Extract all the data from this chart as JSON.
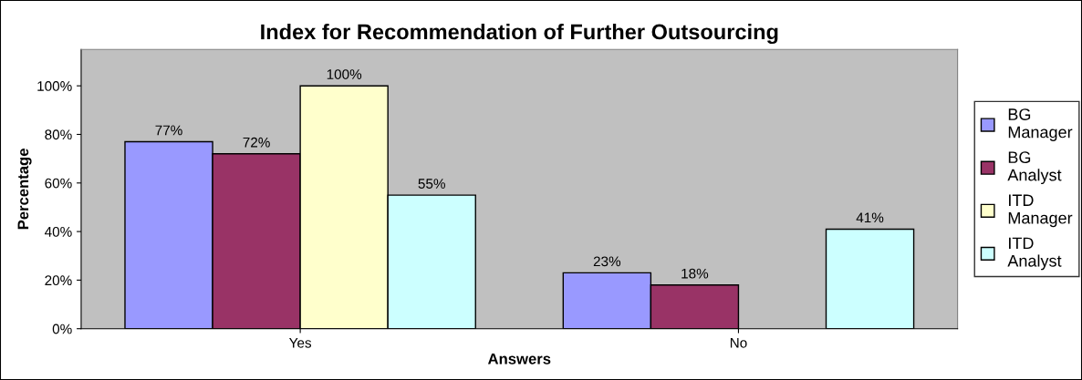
{
  "chart_data": {
    "type": "bar",
    "title": "Index for Recommendation of Further Outsourcing",
    "xlabel": "Answers",
    "ylabel": "Percentage",
    "categories": [
      "Yes",
      "No"
    ],
    "series": [
      {
        "name": "BG Manager",
        "color": "#9999ff",
        "values": [
          77,
          23
        ],
        "value_labels": [
          "77%",
          "23%"
        ]
      },
      {
        "name": "BG Analyst",
        "color": "#993366",
        "values": [
          72,
          18
        ],
        "value_labels": [
          "72%",
          "18%"
        ]
      },
      {
        "name": "ITD Manager",
        "color": "#ffffcc",
        "values": [
          100,
          null
        ],
        "value_labels": [
          "100%",
          null
        ]
      },
      {
        "name": "ITD Analyst",
        "color": "#ccffff",
        "values": [
          55,
          41
        ],
        "value_labels": [
          "55%",
          "41%"
        ]
      }
    ],
    "ylim": [
      0,
      115
    ],
    "yticks": [
      {
        "value": 0,
        "label": "0%"
      },
      {
        "value": 20,
        "label": "20%"
      },
      {
        "value": 40,
        "label": "40%"
      },
      {
        "value": 60,
        "label": "60%"
      },
      {
        "value": 80,
        "label": "80%"
      },
      {
        "value": 100,
        "label": "100%"
      }
    ],
    "grid": false,
    "legend": "right"
  }
}
